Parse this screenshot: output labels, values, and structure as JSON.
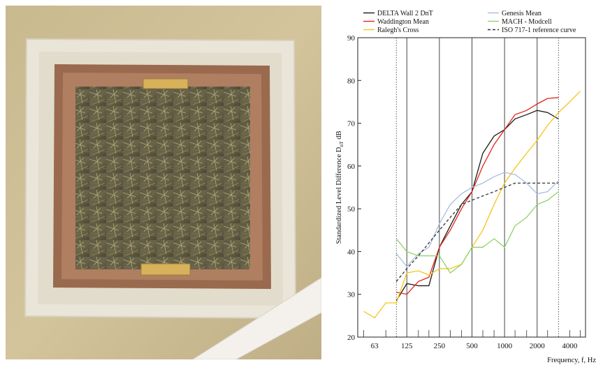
{
  "photo": {
    "subject": "straw-filled truth window in a wall"
  },
  "chart_data": {
    "type": "line",
    "xscale": "log",
    "xlabel": "Frequency, f, Hz",
    "ylabel_main": "Standardized Level Difference D",
    "ylabel_sub": "nT",
    "ylabel_unit": "dB",
    "ylim": [
      20,
      90
    ],
    "yticks": [
      20,
      30,
      40,
      50,
      60,
      70,
      80,
      90
    ],
    "xlim": [
      44,
      5600
    ],
    "xticks": [
      {
        "value": 63,
        "label": "63"
      },
      {
        "value": 125,
        "label": "125"
      },
      {
        "value": 250,
        "label": "250"
      },
      {
        "value": 500,
        "label": "500"
      },
      {
        "value": 1000,
        "label": "1000"
      },
      {
        "value": 2000,
        "label": "2000"
      },
      {
        "value": 4000,
        "label": "4000"
      }
    ],
    "grid_verticals": [
      100,
      125,
      250,
      500,
      1000,
      2000,
      3150
    ],
    "dotted_verticals": [
      100,
      3150
    ],
    "grid": true,
    "legend_position": "top",
    "series": [
      {
        "name": "DELTA Wall 2 DnT",
        "color": "#1a1a1a",
        "dash": "",
        "x": [
          100,
          125,
          160,
          200,
          250,
          315,
          400,
          500,
          630,
          800,
          1000,
          1250,
          1600,
          2000,
          2500,
          3150
        ],
        "y": [
          28.5,
          32.5,
          32,
          32,
          41,
          46,
          51,
          54,
          63,
          67,
          68.5,
          71,
          72,
          73,
          72.5,
          71
        ]
      },
      {
        "name": "Waddington Mean",
        "color": "#e2231a",
        "dash": "",
        "x": [
          100,
          125,
          160,
          200,
          250,
          315,
          400,
          500,
          630,
          800,
          1000,
          1250,
          1600,
          2000,
          2500,
          3150
        ],
        "y": [
          30.5,
          30,
          33,
          34,
          41,
          45,
          50,
          54,
          60,
          65,
          68.5,
          72,
          73,
          74.5,
          75.8,
          76
        ]
      },
      {
        "name": "Ralegh's Cross",
        "color": "#f5c518",
        "dash": "",
        "x": [
          50,
          63,
          80,
          100,
          125,
          160,
          200,
          250,
          315,
          400,
          500,
          630,
          800,
          1000,
          1250,
          1600,
          2000,
          2500,
          3150,
          4000,
          5000
        ],
        "y": [
          26,
          24.5,
          28,
          28,
          35,
          35.5,
          34.5,
          36,
          36,
          37,
          41,
          45,
          51,
          56,
          59.5,
          63,
          66,
          69.5,
          72.5,
          75,
          77.5
        ]
      },
      {
        "name": "Genesis Mean",
        "color": "#a9bde0",
        "dash": "",
        "x": [
          100,
          125,
          160,
          200,
          250,
          315,
          400,
          500,
          630,
          800,
          1000,
          1250,
          1600,
          2000,
          2500,
          3150
        ],
        "y": [
          39.5,
          36.5,
          39.5,
          41,
          46.5,
          51,
          53.5,
          55,
          56,
          57.5,
          58.5,
          58,
          56,
          53.5,
          54,
          56.5
        ]
      },
      {
        "name": "MACH - Modcell",
        "color": "#8fd36a",
        "dash": "",
        "x": [
          100,
          125,
          160,
          200,
          250,
          315,
          400,
          500,
          630,
          800,
          1000,
          1250,
          1600,
          2000,
          2500,
          3150
        ],
        "y": [
          43,
          40,
          39,
          39,
          39,
          35,
          37,
          41,
          41,
          43,
          41,
          46,
          48,
          51,
          52,
          54
        ]
      },
      {
        "name": "ISO 717-1 reference curve",
        "color": "#333333",
        "dash": "4,3",
        "x": [
          100,
          125,
          160,
          200,
          250,
          315,
          400,
          500,
          630,
          800,
          1000,
          1250,
          1600,
          2000,
          2500,
          3150
        ],
        "y": [
          33,
          36,
          39,
          42,
          45,
          48,
          51,
          52,
          53,
          54,
          55,
          56,
          56,
          56,
          56,
          56
        ]
      }
    ]
  }
}
